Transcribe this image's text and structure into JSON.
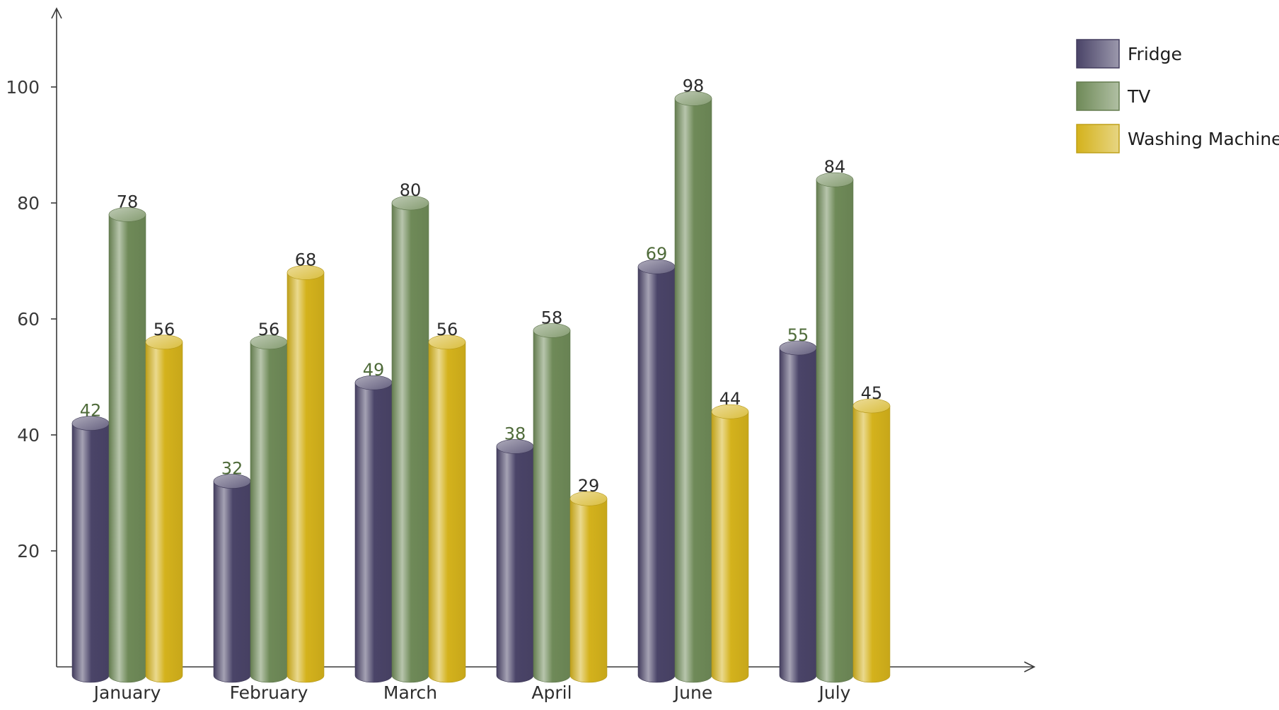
{
  "chart_data": {
    "type": "bar",
    "title": "",
    "xlabel": "",
    "ylabel": "",
    "categories": [
      "January",
      "February",
      "March",
      "April",
      "June",
      "July"
    ],
    "series": [
      {
        "name": "Fridge",
        "values": [
          42,
          32,
          49,
          38,
          69,
          55
        ],
        "color": "#4a4468",
        "label_color": "#4f6b3a"
      },
      {
        "name": "TV",
        "values": [
          78,
          56,
          80,
          58,
          98,
          84
        ],
        "color": "#6f8a58",
        "label_color": "#2b2b2b"
      },
      {
        "name": "Washing Machine",
        "values": [
          56,
          68,
          56,
          29,
          44,
          45
        ],
        "color": "#d4b21c",
        "label_color": "#2b2b2b"
      }
    ],
    "ylim": [
      0,
      110
    ],
    "yticks": [
      20,
      40,
      60,
      80,
      100
    ],
    "grid": false,
    "legend_position": "top-right",
    "style": "3d-cylinder"
  }
}
